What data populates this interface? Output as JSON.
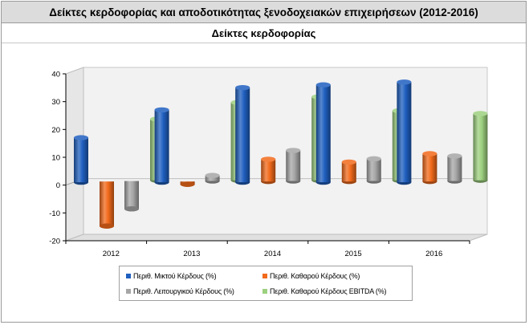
{
  "header": {
    "title": "Δείκτες κερδοφορίας και αποδοτικότητας ξενοδοχειακών επιχειρήσεων (2012-2016)",
    "subtitle": "Δείκτες κερδοφορίας"
  },
  "chart_data": {
    "type": "bar",
    "categories": [
      "2012",
      "2013",
      "2014",
      "2015",
      "2016"
    ],
    "series": [
      {
        "name": "Περιθ. Μικτού Κέρδους (%)",
        "color": "#1f5fbf",
        "values": [
          16,
          26,
          34,
          35,
          36
        ]
      },
      {
        "name": "Περιθ. Καθαρού Κέρδους (%)",
        "color": "#f26a1b",
        "values": [
          -16,
          -1,
          8,
          7,
          10
        ]
      },
      {
        "name": "Περιθ. Λειτουργικού Κέρδους (%)",
        "color": "#a6a6a6",
        "values": [
          -10,
          2,
          11,
          8,
          9
        ]
      },
      {
        "name": "Περιθ. Καθαρού Κέρδους EBITDA (%)",
        "color": "#9dd07f",
        "values": [
          22,
          28,
          30,
          25,
          24
        ]
      }
    ],
    "ylim": [
      -20,
      40
    ],
    "yticks": [
      "40",
      "30",
      "20",
      "10",
      "0",
      "-10",
      "-20"
    ],
    "xlabel": "",
    "ylabel": "",
    "grid": false,
    "style": "3d-cylinder",
    "legend_position": "bottom"
  }
}
